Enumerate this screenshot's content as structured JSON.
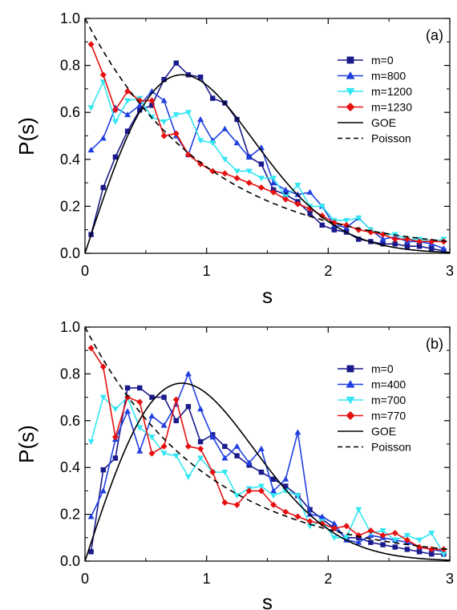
{
  "chart_data": [
    {
      "type": "line",
      "panel_label": "(a)",
      "xlabel": "s",
      "ylabel": "P(s)",
      "xlim": [
        0,
        3
      ],
      "ylim": [
        0,
        1.0
      ],
      "x_ticks": [
        "0",
        "1",
        "2",
        "3"
      ],
      "y_ticks": [
        "0.0",
        "0.2",
        "0.4",
        "0.6",
        "0.8",
        "1.0"
      ],
      "grid": false,
      "legend_position": "top-right",
      "series": [
        {
          "name": "m=0",
          "color": "#1a1a8c",
          "marker": "square",
          "x": [
            0.05,
            0.15,
            0.25,
            0.35,
            0.45,
            0.55,
            0.65,
            0.75,
            0.85,
            0.95,
            1.05,
            1.15,
            1.25,
            1.35,
            1.45,
            1.55,
            1.65,
            1.75,
            1.85,
            1.95,
            2.05,
            2.15,
            2.25,
            2.35,
            2.45,
            2.55,
            2.65,
            2.75,
            2.85,
            2.95
          ],
          "y": [
            0.08,
            0.28,
            0.41,
            0.52,
            0.61,
            0.63,
            0.74,
            0.81,
            0.76,
            0.75,
            0.66,
            0.64,
            0.57,
            0.41,
            0.38,
            0.27,
            0.25,
            0.22,
            0.17,
            0.12,
            0.1,
            0.09,
            0.06,
            0.05,
            0.04,
            0.04,
            0.03,
            0.03,
            0.02,
            0.01
          ]
        },
        {
          "name": "m=800",
          "color": "#1f3fe0",
          "marker": "triangle-up",
          "x": [
            0.05,
            0.15,
            0.25,
            0.35,
            0.45,
            0.55,
            0.65,
            0.75,
            0.85,
            0.95,
            1.05,
            1.15,
            1.25,
            1.35,
            1.45,
            1.55,
            1.65,
            1.75,
            1.85,
            1.95,
            2.05,
            2.15,
            2.25,
            2.35,
            2.45,
            2.55,
            2.65,
            2.75,
            2.85,
            2.95
          ],
          "y": [
            0.44,
            0.49,
            0.62,
            0.59,
            0.63,
            0.69,
            0.65,
            0.5,
            0.42,
            0.57,
            0.48,
            0.53,
            0.47,
            0.41,
            0.45,
            0.3,
            0.27,
            0.25,
            0.26,
            0.2,
            0.12,
            0.11,
            0.15,
            0.1,
            0.06,
            0.07,
            0.05,
            0.05,
            0.04,
            0.02
          ]
        },
        {
          "name": "m=1200",
          "color": "#33e6f2",
          "marker": "triangle-down",
          "x": [
            0.05,
            0.15,
            0.25,
            0.35,
            0.45,
            0.55,
            0.65,
            0.75,
            0.85,
            0.95,
            1.05,
            1.15,
            1.25,
            1.35,
            1.45,
            1.55,
            1.65,
            1.75,
            1.85,
            1.95,
            2.05,
            2.15,
            2.25,
            2.35,
            2.45,
            2.55,
            2.65,
            2.75,
            2.85,
            2.95
          ],
          "y": [
            0.62,
            0.73,
            0.56,
            0.65,
            0.66,
            0.58,
            0.56,
            0.59,
            0.6,
            0.48,
            0.47,
            0.4,
            0.35,
            0.35,
            0.32,
            0.32,
            0.24,
            0.29,
            0.2,
            0.2,
            0.14,
            0.14,
            0.15,
            0.1,
            0.08,
            0.08,
            0.06,
            0.06,
            0.05,
            0.06
          ]
        },
        {
          "name": "m=1230",
          "color": "#e51010",
          "marker": "diamond",
          "x": [
            0.05,
            0.15,
            0.25,
            0.35,
            0.45,
            0.55,
            0.65,
            0.75,
            0.85,
            0.95,
            1.05,
            1.15,
            1.25,
            1.35,
            1.45,
            1.55,
            1.65,
            1.75,
            1.85,
            1.95,
            2.05,
            2.15,
            2.25,
            2.35,
            2.45,
            2.55,
            2.65,
            2.75,
            2.85,
            2.95
          ],
          "y": [
            0.89,
            0.76,
            0.61,
            0.69,
            0.65,
            0.65,
            0.5,
            0.51,
            0.42,
            0.38,
            0.35,
            0.34,
            0.32,
            0.3,
            0.28,
            0.26,
            0.23,
            0.21,
            0.19,
            0.16,
            0.13,
            0.12,
            0.1,
            0.09,
            0.08,
            0.06,
            0.06,
            0.05,
            0.05,
            0.05
          ]
        },
        {
          "name": "GOE",
          "color": "#000000",
          "marker": "none",
          "dash": "solid",
          "func": "goe"
        },
        {
          "name": "Poisson",
          "color": "#000000",
          "marker": "none",
          "dash": "dashed",
          "func": "poisson"
        }
      ]
    },
    {
      "type": "line",
      "panel_label": "(b)",
      "xlabel": "s",
      "ylabel": "P(s)",
      "xlim": [
        0,
        3
      ],
      "ylim": [
        0,
        1.0
      ],
      "x_ticks": [
        "0",
        "1",
        "2",
        "3"
      ],
      "y_ticks": [
        "0.0",
        "0.2",
        "0.4",
        "0.6",
        "0.8",
        "1.0"
      ],
      "grid": false,
      "legend_position": "top-right",
      "series": [
        {
          "name": "m=0",
          "color": "#1a1a8c",
          "marker": "square",
          "x": [
            0.05,
            0.15,
            0.25,
            0.35,
            0.45,
            0.55,
            0.65,
            0.75,
            0.85,
            0.95,
            1.05,
            1.15,
            1.25,
            1.35,
            1.45,
            1.55,
            1.65,
            1.75,
            1.85,
            1.95,
            2.05,
            2.15,
            2.25,
            2.35,
            2.45,
            2.55,
            2.65,
            2.75,
            2.85,
            2.95
          ],
          "y": [
            0.04,
            0.39,
            0.44,
            0.74,
            0.74,
            0.7,
            0.7,
            0.6,
            0.66,
            0.51,
            0.54,
            0.49,
            0.45,
            0.41,
            0.38,
            0.35,
            0.32,
            0.28,
            0.22,
            0.18,
            0.14,
            0.1,
            0.1,
            0.08,
            0.07,
            0.06,
            0.05,
            0.04,
            0.03,
            0.03
          ]
        },
        {
          "name": "m=400",
          "color": "#1f3fe0",
          "marker": "triangle-up",
          "x": [
            0.05,
            0.15,
            0.25,
            0.35,
            0.45,
            0.55,
            0.65,
            0.75,
            0.85,
            0.95,
            1.05,
            1.15,
            1.25,
            1.35,
            1.45,
            1.55,
            1.65,
            1.75,
            1.85,
            1.95,
            2.05,
            2.15,
            2.25,
            2.35,
            2.45,
            2.55,
            2.65,
            2.75,
            2.85,
            2.95
          ],
          "y": [
            0.19,
            0.3,
            0.52,
            0.64,
            0.47,
            0.62,
            0.58,
            0.67,
            0.8,
            0.65,
            0.53,
            0.44,
            0.49,
            0.42,
            0.48,
            0.3,
            0.35,
            0.55,
            0.2,
            0.19,
            0.16,
            0.09,
            0.08,
            0.11,
            0.1,
            0.09,
            0.08,
            0.06,
            0.05,
            0.04
          ]
        },
        {
          "name": "m=700",
          "color": "#33e6f2",
          "marker": "triangle-down",
          "x": [
            0.05,
            0.15,
            0.25,
            0.35,
            0.45,
            0.55,
            0.65,
            0.75,
            0.85,
            0.95,
            1.05,
            1.15,
            1.25,
            1.35,
            1.45,
            1.55,
            1.65,
            1.75,
            1.85,
            1.95,
            2.05,
            2.15,
            2.25,
            2.35,
            2.45,
            2.55,
            2.65,
            2.75,
            2.85,
            2.95
          ],
          "y": [
            0.51,
            0.7,
            0.65,
            0.7,
            0.57,
            0.53,
            0.46,
            0.45,
            0.36,
            0.44,
            0.38,
            0.38,
            0.28,
            0.31,
            0.32,
            0.28,
            0.3,
            0.28,
            0.15,
            0.17,
            0.1,
            0.1,
            0.22,
            0.12,
            0.13,
            0.09,
            0.11,
            0.09,
            0.12,
            0.03
          ]
        },
        {
          "name": "m=770",
          "color": "#e51010",
          "marker": "diamond",
          "x": [
            0.05,
            0.15,
            0.25,
            0.35,
            0.45,
            0.55,
            0.65,
            0.75,
            0.85,
            0.95,
            1.05,
            1.15,
            1.25,
            1.35,
            1.45,
            1.55,
            1.65,
            1.75,
            1.85,
            1.95,
            2.05,
            2.15,
            2.25,
            2.35,
            2.45,
            2.55,
            2.65,
            2.75,
            2.85,
            2.95
          ],
          "y": [
            0.91,
            0.83,
            0.53,
            0.7,
            0.68,
            0.46,
            0.49,
            0.69,
            0.49,
            0.48,
            0.38,
            0.25,
            0.24,
            0.3,
            0.3,
            0.24,
            0.21,
            0.19,
            0.17,
            0.16,
            0.14,
            0.15,
            0.11,
            0.13,
            0.11,
            0.12,
            0.09,
            0.06,
            0.05,
            0.05
          ]
        },
        {
          "name": "GOE",
          "color": "#000000",
          "marker": "none",
          "dash": "solid",
          "func": "goe"
        },
        {
          "name": "Poisson",
          "color": "#000000",
          "marker": "none",
          "dash": "dashed",
          "func": "poisson"
        }
      ]
    }
  ]
}
